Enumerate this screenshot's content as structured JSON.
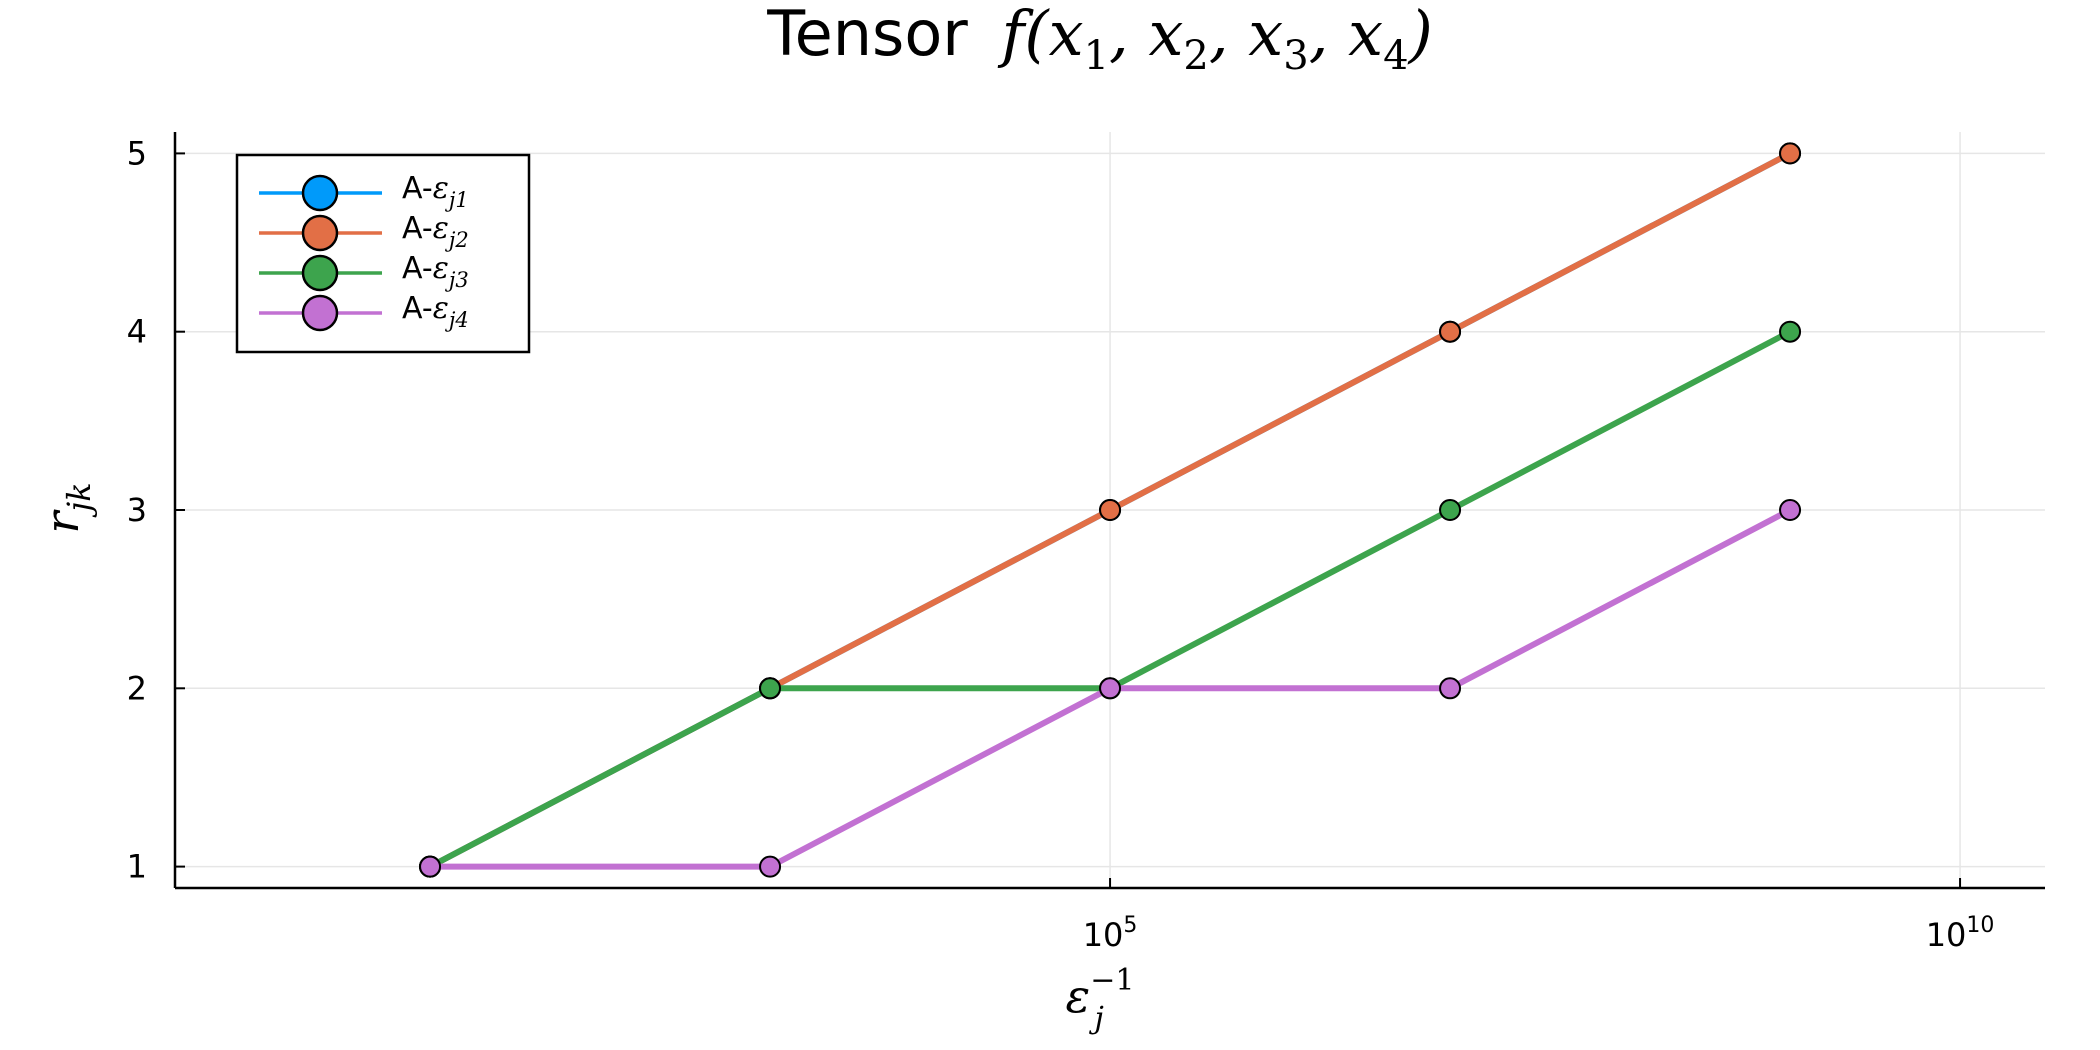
{
  "chart_data": {
    "type": "line",
    "title": {
      "prefix": "Tensor",
      "math": "f(x",
      "parts": [
        "1",
        "2",
        "3",
        "4"
      ]
    },
    "xlabel": {
      "base": "ε",
      "sub": "j",
      "sup": "−1"
    },
    "ylabel": {
      "base": "r",
      "sub": "jk"
    },
    "x_scale": "log10",
    "x_ticks": [
      {
        "value": 100000,
        "base": "10",
        "exp": "5"
      },
      {
        "value": 10000000000,
        "base": "10",
        "exp": "10"
      }
    ],
    "y_ticks": [
      1,
      2,
      3,
      4,
      5
    ],
    "y_tick_labels": [
      "1",
      "2",
      "3",
      "4",
      "5"
    ],
    "xlim": [
      0.316,
      31600000000.0
    ],
    "ylim": [
      0.88,
      5.12
    ],
    "grid": true,
    "legend_position": "top-left",
    "x": [
      10,
      1000,
      100000,
      10000000,
      1000000000,
      10000000000
    ],
    "series": [
      {
        "name_prefix": "A-",
        "name_base": "ε",
        "name_sub": "j1",
        "color": "#009AFA",
        "values": [
          1,
          2,
          3,
          4,
          5,
          null
        ]
      },
      {
        "name_prefix": "A-",
        "name_base": "ε",
        "name_sub": "j2",
        "color": "#E26F46",
        "values": [
          1,
          2,
          3,
          4,
          5,
          null
        ]
      },
      {
        "name_prefix": "A-",
        "name_base": "ε",
        "name_sub": "j3",
        "color": "#3DA44D",
        "values": [
          1,
          2,
          2,
          3,
          4,
          null
        ]
      },
      {
        "name_prefix": "A-",
        "name_base": "ε",
        "name_sub": "j4",
        "color": "#C271D2",
        "values": [
          1,
          1,
          2,
          2,
          3,
          null
        ]
      }
    ]
  }
}
